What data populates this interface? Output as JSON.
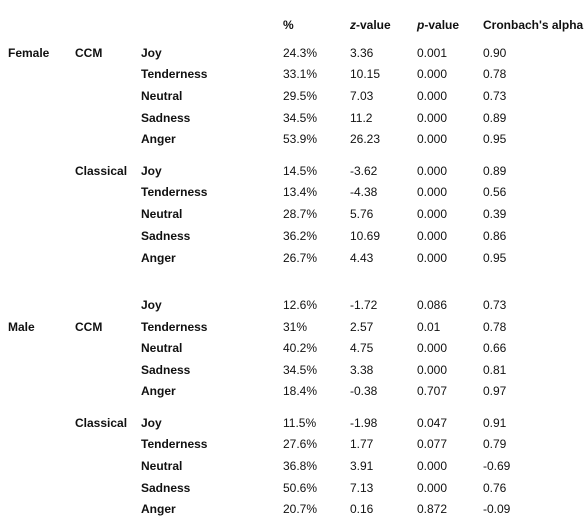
{
  "header": [
    "%",
    {
      "em": "z",
      "text": "-value"
    },
    {
      "em": "p",
      "text": "-value"
    },
    "Cronbach's alpha"
  ],
  "groups": [
    {
      "gender": "Female",
      "subgroups": [
        {
          "genre": "CCM",
          "rows": [
            [
              "Joy",
              "24.3%",
              "3.36",
              "0.001",
              "0.90"
            ],
            [
              "Tenderness",
              "33.1%",
              "10.15",
              "0.000",
              "0.78"
            ],
            [
              "Neutral",
              "29.5%",
              "7.03",
              "0.000",
              "0.73"
            ],
            [
              "Sadness",
              "34.5%",
              "11.2",
              "0.000",
              "0.89"
            ],
            [
              "Anger",
              "53.9%",
              "26.23",
              "0.000",
              "0.95"
            ]
          ]
        },
        {
          "genre": "Classical",
          "rows": [
            [
              "Joy",
              "14.5%",
              "-3.62",
              "0.000",
              "0.89"
            ],
            [
              "Tenderness",
              "13.4%",
              "-4.38",
              "0.000",
              "0.56"
            ],
            [
              "Neutral",
              "28.7%",
              "5.76",
              "0.000",
              "0.39"
            ],
            [
              "Sadness",
              "36.2%",
              "10.69",
              "0.000",
              "0.86"
            ],
            [
              "Anger",
              "26.7%",
              "4.43",
              "0.000",
              "0.95"
            ]
          ]
        }
      ]
    },
    {
      "gender": "Male",
      "subgroups": [
        {
          "genre": "CCM",
          "rows": [
            [
              "Joy",
              "12.6%",
              "-1.72",
              "0.086",
              "0.73"
            ],
            [
              "Tenderness",
              "31%",
              "2.57",
              "0.01",
              "0.78"
            ],
            [
              "Neutral",
              "40.2%",
              "4.75",
              "0.000",
              "0.66"
            ],
            [
              "Sadness",
              "34.5%",
              "3.38",
              "0.000",
              "0.81"
            ],
            [
              "Anger",
              "18.4%",
              "-0.38",
              "0.707",
              "0.97"
            ]
          ]
        },
        {
          "genre": "Classical",
          "rows": [
            [
              "Joy",
              "11.5%",
              "-1.98",
              "0.047",
              "0.91"
            ],
            [
              "Tenderness",
              "27.6%",
              "1.77",
              "0.077",
              "0.79"
            ],
            [
              "Neutral",
              "36.8%",
              "3.91",
              "0.000",
              "-0.69"
            ],
            [
              "Sadness",
              "50.6%",
              "7.13",
              "0.000",
              "0.76"
            ],
            [
              "Anger",
              "20.7%",
              "0.16",
              "0.872",
              "-0.09"
            ]
          ]
        }
      ]
    }
  ]
}
